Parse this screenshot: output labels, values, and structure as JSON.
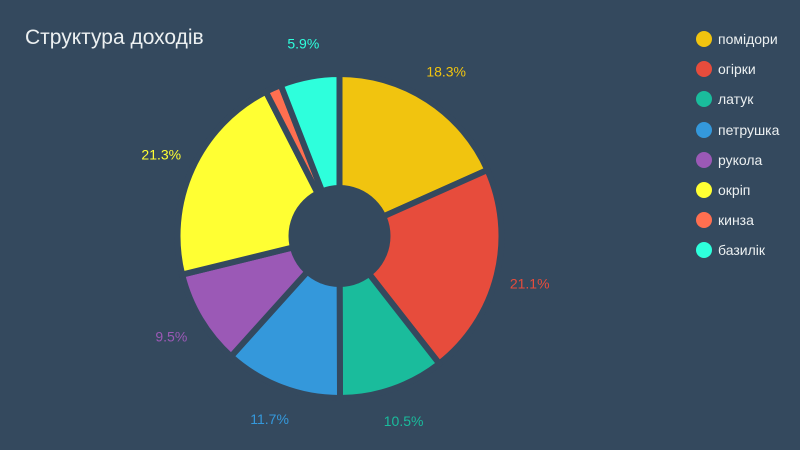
{
  "chart_data": {
    "type": "pie",
    "title": "Структура доходів",
    "donut": true,
    "legend_position": "right",
    "categories": [
      "помідори",
      "огірки",
      "латук",
      "петрушка",
      "рукола",
      "окріп",
      "кинза",
      "базилік"
    ],
    "values": [
      18.3,
      21.1,
      10.5,
      11.7,
      9.5,
      21.3,
      1.6,
      5.9
    ],
    "labels": [
      "18.3%",
      "21.1%",
      "10.5%",
      "11.7%",
      "9.5%",
      "21.3%",
      "",
      "5.9%"
    ],
    "colors": [
      "#f1c40f",
      "#e74c3c",
      "#1abc9c",
      "#3498db",
      "#9b59b6",
      "#ffff33",
      "#ff6f50",
      "#2effdc"
    ]
  },
  "background_color": "#34495e"
}
